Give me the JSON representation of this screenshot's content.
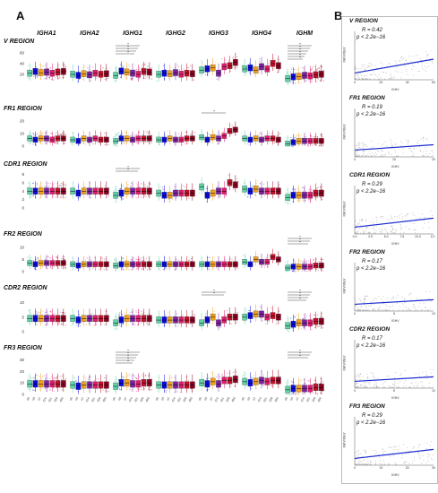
{
  "panel_a_label": "A",
  "panel_b_label": "B",
  "isotypes": [
    "IGHA1",
    "IGHA2",
    "IGHG1",
    "IGHG2",
    "IGHG3",
    "IGHG4",
    "IGHM"
  ],
  "regions": [
    {
      "title": "V REGION",
      "yticks": [
        "20",
        "40",
        "60"
      ]
    },
    {
      "title": "FR1 REGION",
      "yticks": [
        "0",
        "10",
        "20"
      ]
    },
    {
      "title": "CDR1 REGION",
      "yticks": [
        "0",
        "2",
        "4",
        "6",
        "8"
      ]
    },
    {
      "title": "FR2 REGION",
      "yticks": [
        "0",
        "5",
        "10"
      ]
    },
    {
      "title": "CDR2 REGION",
      "yticks": [
        "0",
        "5",
        "10"
      ]
    },
    {
      "title": "FR3 REGION",
      "yticks": [
        "0",
        "10",
        "20",
        "30"
      ]
    }
  ],
  "groups": [
    "d0",
    "d3",
    "d7",
    "d14",
    "d21",
    "d28",
    "d90"
  ],
  "group_colors": [
    "#5fd3a8",
    "#0a0adf",
    "#f0a020",
    "#7d1fa0",
    "#e11b6e",
    "#c0102a",
    "#8b0020"
  ],
  "scatter_panels": [
    {
      "title": "V REGION",
      "r": "R = 0.42",
      "p": "p < 2.2e−16",
      "xlabel": "IGHV",
      "ylabel": "IGKV/IGLV",
      "xticks": [
        "0",
        "20",
        "40",
        "60"
      ]
    },
    {
      "title": "FR1 REGION",
      "r": "R = 0.19",
      "p": "p < 2.2e−16",
      "xlabel": "IGHV",
      "ylabel": "IGKV/IGLV",
      "xticks": [
        "0",
        "10",
        "20"
      ]
    },
    {
      "title": "CDR1 REGION",
      "r": "R = 0.29",
      "p": "p < 2.2e−16",
      "xlabel": "IGHV",
      "ylabel": "IGKV/IGLV",
      "xticks": [
        "0.0",
        "2.5",
        "5.0",
        "7.5",
        "10.0",
        "12.5"
      ]
    },
    {
      "title": "FR2 REGION",
      "r": "R = 0.17",
      "p": "p < 2.2e−16",
      "xlabel": "IGHV",
      "ylabel": "IGKV/IGLV",
      "xticks": [
        "0",
        "5",
        "10"
      ]
    },
    {
      "title": "CDR2 REGION",
      "r": "R = 0.17",
      "p": "p < 2.2e−16",
      "xlabel": "IGHV",
      "ylabel": "IGKV/IGLV",
      "xticks": [
        "0",
        "5",
        "10"
      ]
    },
    {
      "title": "FR3 REGION",
      "r": "R = 0.29",
      "p": "p < 2.2e−16",
      "xlabel": "IGHV",
      "ylabel": "IGKV/IGLV",
      "xticks": [
        "0",
        "10",
        "20",
        "30"
      ]
    }
  ],
  "chart_data": {
    "type": "box",
    "title": "",
    "facets_rows": [
      "V REGION",
      "FR1 REGION",
      "CDR1 REGION",
      "FR2 REGION",
      "CDR2 REGION",
      "FR3 REGION"
    ],
    "facets_cols": [
      "IGHA1",
      "IGHA2",
      "IGHG1",
      "IGHG2",
      "IGHG3",
      "IGHG4",
      "IGHM"
    ],
    "series_names": [
      "d0",
      "d3",
      "d7",
      "d14",
      "d21",
      "d28",
      "d90"
    ],
    "ylim": [
      [
        0,
        70
      ],
      [
        0,
        25
      ],
      [
        0,
        9
      ],
      [
        0,
        13
      ],
      [
        0,
        13
      ],
      [
        0,
        35
      ]
    ],
    "medians": [
      [
        [
          22,
          25,
          23,
          24,
          22,
          24,
          25
        ],
        [
          20,
          18,
          21,
          19,
          22,
          20,
          21
        ],
        [
          18,
          26,
          24,
          22,
          20,
          25,
          24
        ],
        [
          20,
          22,
          21,
          23,
          20,
          22,
          21
        ],
        [
          28,
          30,
          32,
          22,
          34,
          36,
          42
        ],
        [
          30,
          32,
          28,
          34,
          30,
          40,
          36
        ],
        [
          12,
          15,
          16,
          18,
          17,
          19,
          20
        ]
      ],
      [
        [
          6,
          5,
          6,
          6,
          5,
          6,
          6
        ],
        [
          5,
          4,
          6,
          5,
          6,
          5,
          5
        ],
        [
          4,
          6,
          6,
          5,
          6,
          6,
          6
        ],
        [
          5,
          5,
          6,
          5,
          5,
          6,
          6
        ],
        [
          7,
          5,
          7,
          6,
          8,
          12,
          13
        ],
        [
          6,
          5,
          6,
          5,
          6,
          6,
          5
        ],
        [
          2,
          3,
          4,
          4,
          4,
          4,
          4
        ]
      ],
      [
        [
          4,
          4,
          4,
          4,
          4,
          4,
          4
        ],
        [
          4,
          3.5,
          4,
          4,
          4,
          4,
          4
        ],
        [
          3,
          3.5,
          4,
          4,
          4,
          4,
          4
        ],
        [
          3.5,
          3,
          3,
          3.5,
          3.5,
          3.5,
          3.5
        ],
        [
          5,
          3,
          3.5,
          4,
          4,
          6,
          5.5
        ],
        [
          4.5,
          4,
          4.5,
          4,
          4,
          4,
          4
        ],
        [
          2.5,
          3,
          3,
          3,
          3,
          3.5,
          3.5
        ]
      ],
      [
        [
          3.5,
          3,
          3.5,
          3.5,
          3.5,
          3.5,
          3.5
        ],
        [
          3,
          2.5,
          3,
          3,
          3,
          3,
          3
        ],
        [
          2.5,
          3,
          3,
          3,
          3,
          3,
          3
        ],
        [
          3,
          3,
          3,
          3,
          3,
          3,
          3
        ],
        [
          3,
          3,
          3,
          3,
          3,
          3,
          3
        ],
        [
          4,
          3,
          5,
          4,
          4,
          6,
          5
        ],
        [
          1.5,
          2,
          2,
          2,
          2,
          2.5,
          2.5
        ]
      ],
      [
        [
          4.5,
          4.5,
          4.5,
          4.5,
          4.5,
          4.5,
          4.5
        ],
        [
          4.5,
          4,
          4.5,
          4.5,
          4.5,
          4.5,
          4.5
        ],
        [
          3,
          4,
          4.5,
          4.5,
          4.5,
          4.5,
          4.5
        ],
        [
          4,
          4,
          4,
          4,
          4,
          4,
          4
        ],
        [
          3,
          4,
          5,
          3,
          4,
          5,
          5
        ],
        [
          5,
          5.5,
          6,
          6,
          5,
          5.5,
          5
        ],
        [
          2,
          2.5,
          3,
          3,
          3,
          3.5,
          3.5
        ]
      ],
      [
        [
          9,
          9,
          9,
          9,
          9,
          9,
          9
        ],
        [
          8,
          7,
          8,
          8,
          8,
          8,
          8
        ],
        [
          7,
          10,
          10,
          9,
          9,
          10,
          10
        ],
        [
          8,
          8,
          8,
          8,
          8,
          8,
          8
        ],
        [
          10,
          9,
          11,
          9,
          12,
          12,
          13
        ],
        [
          11,
          10,
          11,
          12,
          11,
          12,
          12
        ],
        [
          4,
          5,
          5,
          5,
          5,
          6,
          6
        ]
      ]
    ],
    "scatter": [
      {
        "region": "V REGION",
        "r": 0.42,
        "xlim": [
          0,
          70
        ],
        "ylim": [
          0,
          60
        ]
      },
      {
        "region": "FR1 REGION",
        "r": 0.19,
        "xlim": [
          0,
          25
        ],
        "ylim": [
          0,
          20
        ]
      },
      {
        "region": "CDR1 REGION",
        "r": 0.29,
        "xlim": [
          0,
          12.5
        ],
        "ylim": [
          0,
          8
        ]
      },
      {
        "region": "FR2 REGION",
        "r": 0.17,
        "xlim": [
          0,
          13
        ],
        "ylim": [
          0,
          12
        ]
      },
      {
        "region": "CDR2 REGION",
        "r": 0.17,
        "xlim": [
          0,
          13
        ],
        "ylim": [
          0,
          12
        ]
      },
      {
        "region": "FR3 REGION",
        "r": 0.29,
        "xlim": [
          0,
          35
        ],
        "ylim": [
          0,
          30
        ]
      }
    ]
  }
}
